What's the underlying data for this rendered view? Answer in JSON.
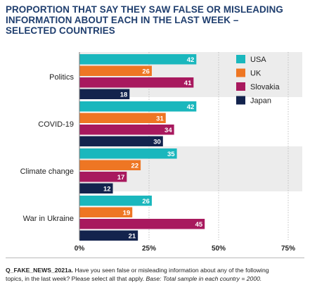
{
  "title_lines": [
    "PROPORTION THAT SAY THEY SAW FALSE OR MISLEADING",
    "INFORMATION ABOUT EACH IN THE LAST WEEK –",
    "SELECTED COUNTRIES"
  ],
  "footnote": {
    "question_id": "Q_FAKE_NEWS_2021a.",
    "line1_text": " Have you seen false or misleading information about any of the following",
    "line2_text": "topics, in the last week? Please select all that apply. ",
    "base_label": "Base:",
    "base_text": " Total sample in each country = 2000."
  },
  "chart_data": {
    "type": "bar",
    "orientation": "horizontal",
    "categories": [
      "Politics",
      "COVID-19",
      "Climate change",
      "War in Ukraine"
    ],
    "series": [
      {
        "name": "USA",
        "color": "#1ab7bd",
        "values": [
          42,
          42,
          35,
          26
        ]
      },
      {
        "name": "UK",
        "color": "#ee7623",
        "values": [
          26,
          31,
          22,
          19
        ]
      },
      {
        "name": "Slovakia",
        "color": "#a8195e",
        "values": [
          41,
          34,
          17,
          45
        ]
      },
      {
        "name": "Japan",
        "color": "#13234d",
        "values": [
          18,
          30,
          12,
          21
        ]
      }
    ],
    "xlim": [
      0,
      75
    ],
    "xticks": [
      "0%",
      "25%",
      "50%",
      "75%"
    ],
    "xtick_values": [
      0,
      25,
      50,
      75
    ],
    "legend_position": "top-right",
    "value_label_color": "#ffffff"
  }
}
